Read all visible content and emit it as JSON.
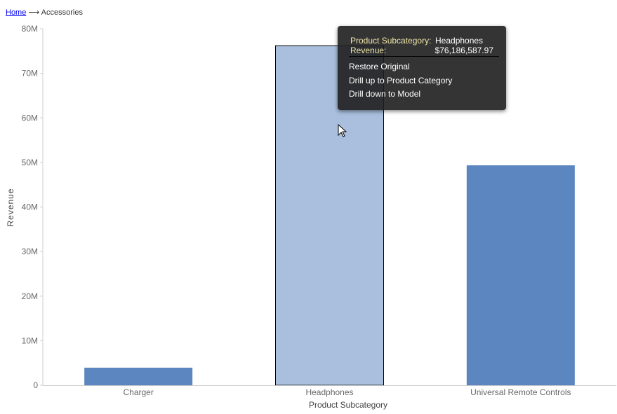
{
  "breadcrumb": {
    "home": "Home",
    "separator": "⟶",
    "current": "Accessories"
  },
  "chart_data": {
    "type": "bar",
    "categories": [
      "Charger",
      "Headphones",
      "Universal Remote Controls"
    ],
    "values": [
      3950000,
      76186587.97,
      49350000
    ],
    "xlabel": "Product Subcategory",
    "ylabel": "Revenue",
    "ylim": [
      0,
      80000000
    ],
    "yticks": [
      0,
      10000000,
      20000000,
      30000000,
      40000000,
      50000000,
      60000000,
      70000000,
      80000000
    ],
    "ytick_labels": [
      "0",
      "10M",
      "20M",
      "30M",
      "40M",
      "50M",
      "60M",
      "70M",
      "80M"
    ],
    "bar_color": "#5b86bf",
    "highlight_color": "#a9bfdd",
    "highlight_index": 1,
    "grid": false
  },
  "tooltip": {
    "k1": "Product Subcategory:",
    "v1": "Headphones",
    "k2": "Revenue:",
    "v2": "$76,186,587.97",
    "menu": [
      "Restore Original",
      "Drill up to Product Category",
      "Drill down to Model"
    ]
  }
}
